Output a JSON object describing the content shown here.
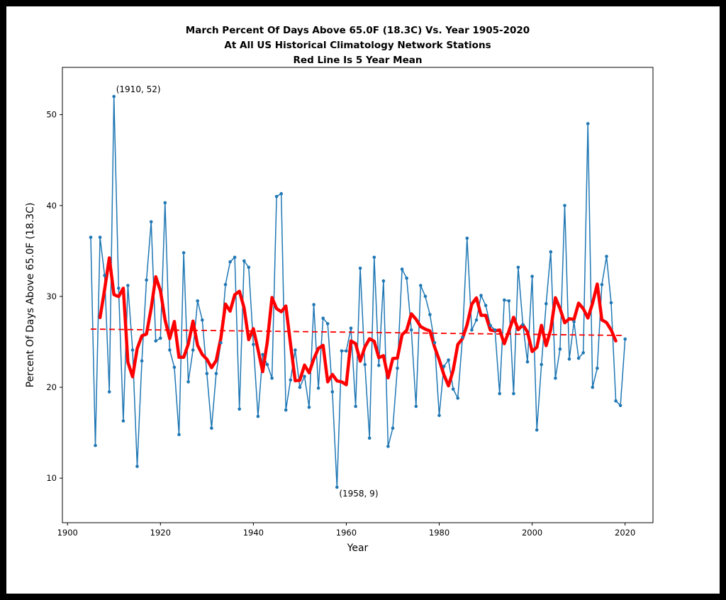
{
  "title": {
    "line1": "March Percent Of Days Above 65.0F (18.3C) Vs. Year 1905-2020",
    "line2": "At All US Historical Climatology Network Stations",
    "line3": "Red Line Is 5 Year Mean"
  },
  "chart_data": {
    "type": "line",
    "title": "March Percent Of Days Above 65.0F (18.3C) Vs. Year 1905-2020 / At All US Historical Climatology Network Stations / Red Line Is 5 Year Mean",
    "xlabel": "Year",
    "ylabel": "Percent Of Days Above 65.0F (18.3C)",
    "xlim": [
      1898.9,
      2026.0
    ],
    "ylim": [
      5.1,
      55.2
    ],
    "x_ticks": [
      1900,
      1920,
      1940,
      1960,
      1980,
      2000,
      2020
    ],
    "y_ticks": [
      10,
      20,
      30,
      40,
      50
    ],
    "grid": false,
    "legend_position": "none",
    "colors": {
      "yearly_line": "#1f77b4",
      "mean_line": "#ff0000",
      "trend_line": "#ff0000",
      "text": "#000000"
    },
    "series": [
      {
        "name": "yearly_percent",
        "type": "line_with_markers",
        "x_start": 1905,
        "x_end": 2020,
        "values": [
          36.5,
          13.6,
          36.5,
          32.3,
          19.5,
          52,
          30.9,
          16.3,
          31.2,
          24.1,
          11.3,
          22.9,
          31.8,
          38.2,
          25.1,
          25.4,
          40.3,
          24.1,
          22.2,
          14.8,
          34.8,
          20.6,
          24.1,
          29.5,
          27.4,
          21.5,
          15.5,
          21.5,
          24.9,
          31.3,
          33.8,
          34.3,
          17.6,
          33.9,
          33.2,
          24.7,
          16.8,
          23.6,
          22.5,
          21.0,
          41.0,
          41.3,
          17.5,
          20.8,
          24.1,
          20.0,
          21.2,
          17.8,
          29.1,
          19.9,
          27.6,
          27.0,
          19.5,
          9,
          24.0,
          24.0,
          26.5,
          17.9,
          33.1,
          22.5,
          14.4,
          34.3,
          22.4,
          31.7,
          13.5,
          15.5,
          22.1,
          33.0,
          32.0,
          26.3,
          17.9,
          31.2,
          30.0,
          28.0,
          24.9,
          16.9,
          22.3,
          23.0,
          19.8,
          18.8,
          25.5,
          36.4,
          26.3,
          27.4,
          30.1,
          29.0,
          26.8,
          26.3,
          19.3,
          29.6,
          29.5,
          19.3,
          33.2,
          26.9,
          22.8,
          32.2,
          15.3,
          22.5,
          29.2,
          34.9,
          21.0,
          24.2,
          40.0,
          23.1,
          27.2,
          23.2,
          23.8,
          49.0,
          20.0,
          22.1,
          31.3,
          34.4,
          29.3,
          18.5,
          18.0,
          25.3
        ]
      },
      {
        "name": "five_year_mean",
        "type": "line",
        "derived_from": "yearly_percent",
        "window": 5,
        "centered": true,
        "linewidth": 4.5
      },
      {
        "name": "linear_trend",
        "type": "dashed_line",
        "x": [
          1905,
          2020
        ],
        "y": [
          26.4,
          25.7
        ]
      }
    ],
    "annotations": [
      {
        "label": "(1910, 52)",
        "x": 1910,
        "y": 52
      },
      {
        "label": "(1958, 9)",
        "x": 1958,
        "y": 9
      }
    ]
  }
}
